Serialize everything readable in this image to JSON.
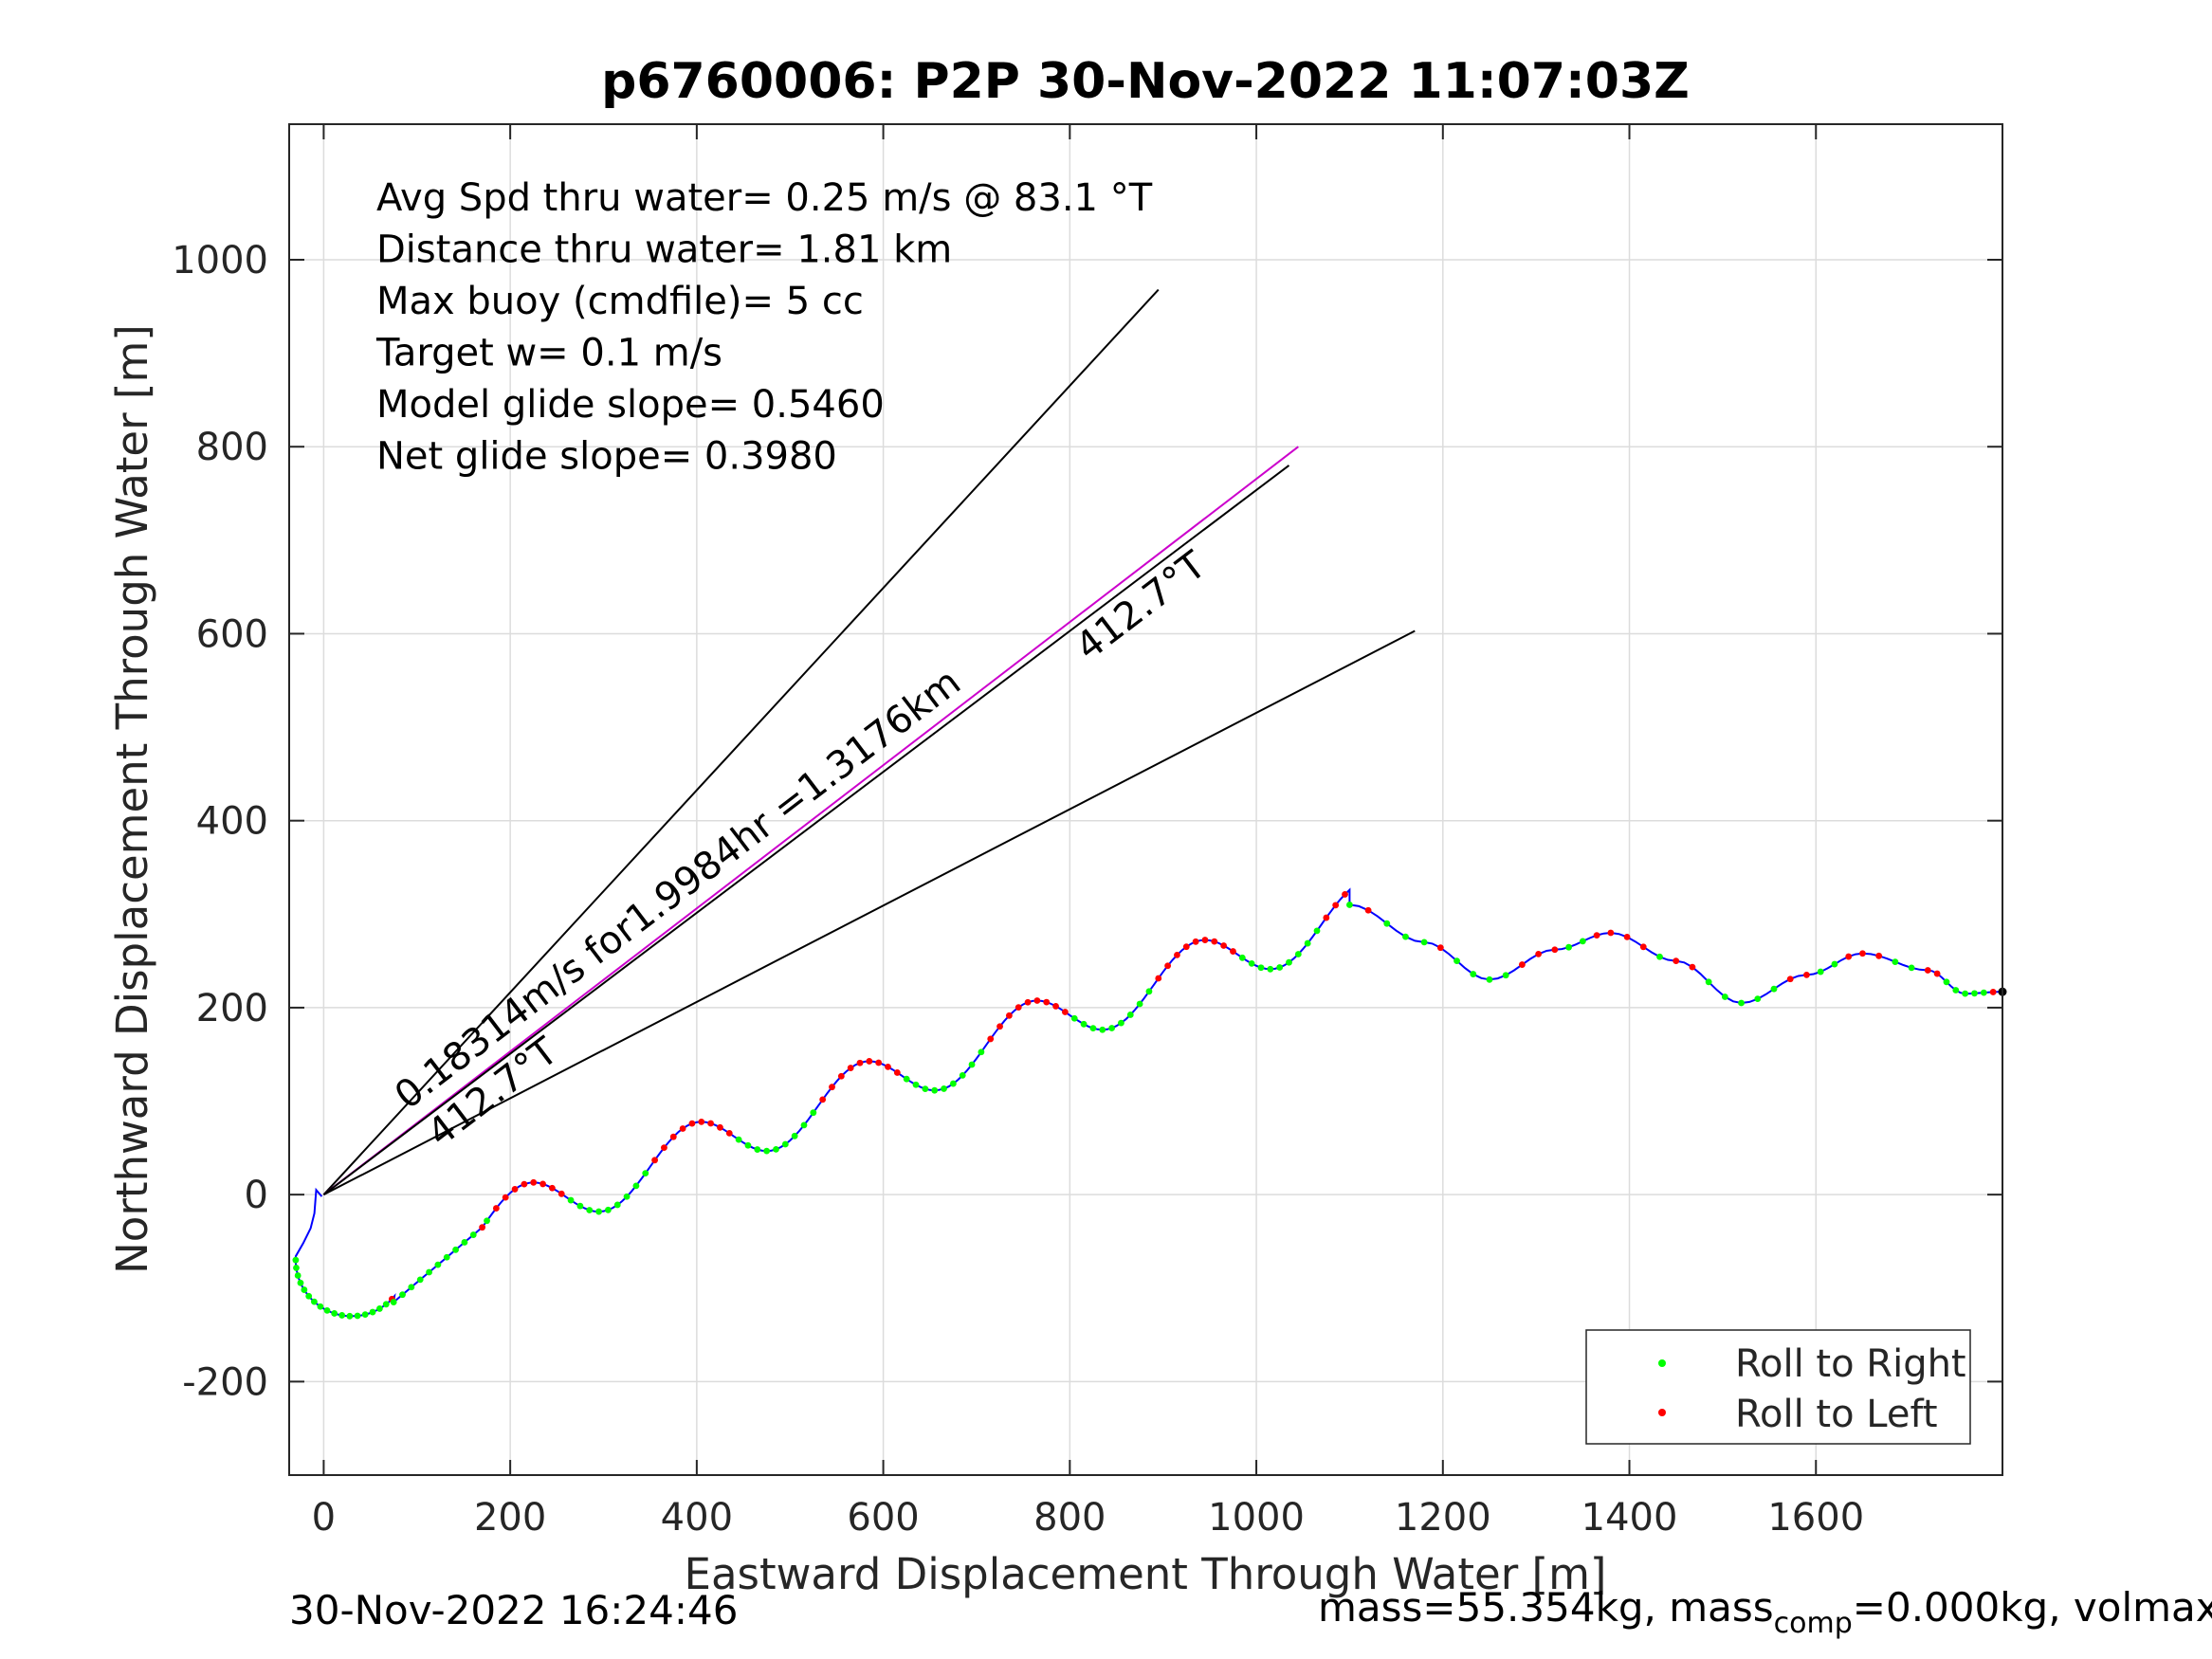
{
  "chart_data": {
    "type": "scatter",
    "title": "p6760006: P2P 30-Nov-2022 11:07:03Z",
    "xlabel": "Eastward Displacement Through Water [m]",
    "ylabel": "Northward Displacement Through Water [m]",
    "xlim": [
      -37,
      1800
    ],
    "ylim": [
      -300,
      1145
    ],
    "xticks": [
      0,
      200,
      400,
      600,
      800,
      1000,
      1200,
      1400,
      1600
    ],
    "yticks": [
      -200,
      0,
      200,
      400,
      600,
      800,
      1000
    ],
    "xtick_labels": [
      "0",
      "200",
      "400",
      "600",
      "800",
      "1000",
      "1200",
      "1400",
      "1600"
    ],
    "ytick_labels": [
      "-200",
      "0",
      "200",
      "400",
      "600",
      "800",
      "1000"
    ],
    "grid": true,
    "legend_position": "bottom-right",
    "series": [
      {
        "name": "Roll to Right",
        "color": "#00ff00"
      },
      {
        "name": "Roll to Left",
        "color": "#ff0000"
      }
    ],
    "track": {
      "color": "#0000ff",
      "start": [
        -2,
        -2
      ],
      "end": [
        1800,
        217
      ],
      "start_segment": [
        [
          -2,
          -2
        ],
        [
          -8,
          5
        ],
        [
          -10,
          -20
        ],
        [
          -14,
          -36
        ],
        [
          -22,
          -52
        ],
        [
          -30,
          -66
        ]
      ],
      "turn_center": [
        30,
        -70
      ],
      "turn_radius": 60,
      "wave_start": [
        75,
        -115
      ],
      "wave_segment_1": [
        [
          75,
          -115
        ],
        [
          170,
          -35
        ]
      ],
      "wave_pts": [
        [
          170,
          -35
        ],
        [
          1100,
          300
        ]
      ],
      "wave_amplitude": 30,
      "wave_period": 180,
      "tail_amplitude": 50,
      "tail_pts": [
        [
          1100,
          310
        ],
        [
          1180,
          270
        ],
        [
          1250,
          230
        ],
        [
          1320,
          262
        ],
        [
          1380,
          280
        ],
        [
          1450,
          250
        ],
        [
          1520,
          205
        ],
        [
          1590,
          235
        ],
        [
          1650,
          258
        ],
        [
          1720,
          240
        ],
        [
          1760,
          215
        ],
        [
          1800,
          217
        ]
      ]
    },
    "bearing_lines": [
      {
        "from": [
          0,
          0
        ],
        "to": [
          895,
          968
        ],
        "color": "#000000"
      },
      {
        "from": [
          0,
          0
        ],
        "to": [
          1045,
          800
        ],
        "color": "#cc00cc"
      },
      {
        "from": [
          0,
          0
        ],
        "to": [
          1170,
          603
        ],
        "color": "#000000"
      },
      {
        "from": [
          0,
          0
        ],
        "to": [
          1035,
          780
        ],
        "color": "#000000"
      }
    ],
    "annotations": [
      "Avg Spd thru water=  0.25 m/s @  83.1 °T",
      "Distance thru water=  1.81 km",
      "Max buoy (cmdfile)= 5 cc",
      "Target w= 0.1 m/s",
      "Model glide slope= 0.5460",
      "Net glide slope= 0.3980"
    ],
    "line_labels": [
      {
        "text": "0.18314m/s for1.9984hr =1.3176km",
        "at": [
          90,
          90
        ],
        "angle": 37.3
      },
      {
        "text": "412.7°T",
        "at": [
          820,
          570
        ],
        "angle": 37.3
      },
      {
        "text": "412.7°T",
        "at": [
          125,
          50
        ],
        "angle": 37.3
      }
    ]
  },
  "footer": {
    "timestamp": "30-Nov-2022 16:24:46",
    "mass_text": "mass=55.354kg, mass",
    "mass_sub": "comp",
    "mass_rest": "=0.000kg, volmax"
  }
}
